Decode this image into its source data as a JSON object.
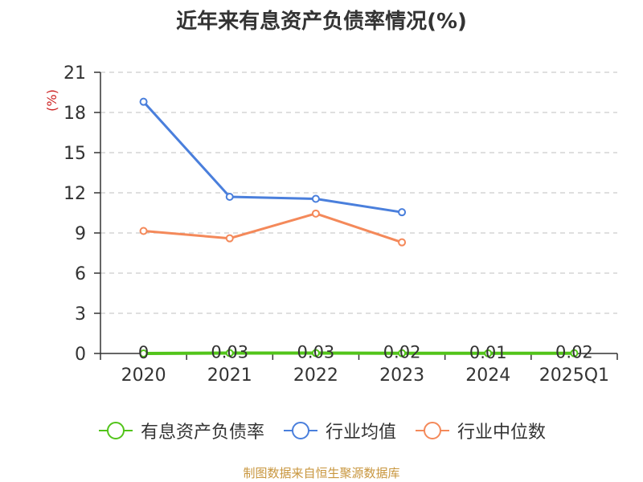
{
  "chart_data": {
    "type": "line",
    "title": "近年来有息资产负债率情况(%)",
    "ylabel": "(%)",
    "xlabel": "",
    "categories": [
      "2020",
      "2021",
      "2022",
      "2023",
      "2024",
      "2025Q1"
    ],
    "ylim": [
      0,
      21
    ],
    "yticks": [
      0,
      3,
      6,
      9,
      12,
      15,
      18,
      21
    ],
    "grid": true,
    "legend_position": "bottom",
    "series": [
      {
        "name": "有息资产负债率",
        "color": "#52c41a",
        "values": [
          0,
          0.03,
          0.03,
          0.02,
          0.01,
          0.02
        ],
        "labels": [
          "0",
          "0.03",
          "0.03",
          "0.02",
          "0.01",
          "0.02"
        ]
      },
      {
        "name": "行业均值",
        "color": "#4a7fdc",
        "values": [
          18.8,
          11.7,
          11.55,
          10.55,
          null,
          null
        ]
      },
      {
        "name": "行业中位数",
        "color": "#f4895a",
        "values": [
          9.15,
          8.6,
          10.45,
          8.3,
          null,
          null
        ]
      }
    ],
    "source": "制图数据来自恒生聚源数据库"
  }
}
